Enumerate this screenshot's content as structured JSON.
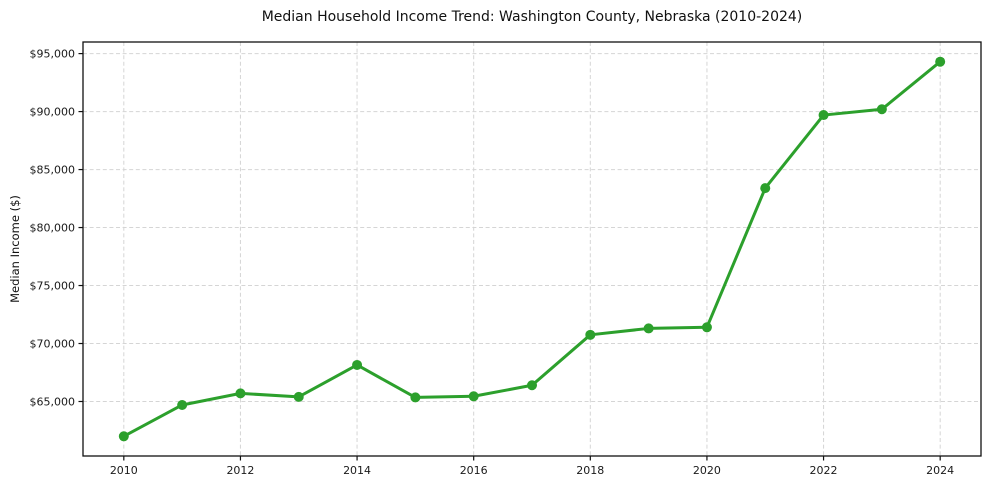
{
  "figure": {
    "title": "Median Household Income Trend: Washington County, Nebraska (2010-2024)"
  },
  "chart_data": {
    "type": "line",
    "title": "Median Household Income Trend: Washington County, Nebraska (2010-2024)",
    "xlabel": "",
    "ylabel": "Median Income ($)",
    "x": [
      2010,
      2011,
      2012,
      2013,
      2014,
      2015,
      2016,
      2017,
      2018,
      2019,
      2020,
      2021,
      2022,
      2023,
      2024
    ],
    "series": [
      {
        "name": "Median Household Income",
        "values": [
          62000,
          64700,
          65700,
          65400,
          68150,
          65350,
          65450,
          66400,
          70750,
          71300,
          71400,
          83400,
          89700,
          90200,
          94300
        ]
      }
    ],
    "xticks": [
      2010,
      2012,
      2014,
      2016,
      2018,
      2020,
      2022,
      2024
    ],
    "xtick_labels": [
      "2010",
      "2012",
      "2014",
      "2016",
      "2018",
      "2020",
      "2022",
      "2024"
    ],
    "yticks": [
      65000,
      70000,
      75000,
      80000,
      85000,
      90000,
      95000
    ],
    "ytick_labels": [
      "$65,000",
      "$70,000",
      "$75,000",
      "$80,000",
      "$85,000",
      "$90,000",
      "$95,000"
    ],
    "xlim": [
      2009.3,
      2024.7
    ],
    "ylim": [
      60300,
      96000
    ],
    "grid": true,
    "legend": false,
    "line_color": "#2ca02c",
    "marker": "circle",
    "marker_radius": 5,
    "line_width": 3,
    "grid_color": "#d5d5d5",
    "spine_color": "#111111",
    "tick_label_color": "#1a1a1a",
    "background": "#ffffff"
  }
}
